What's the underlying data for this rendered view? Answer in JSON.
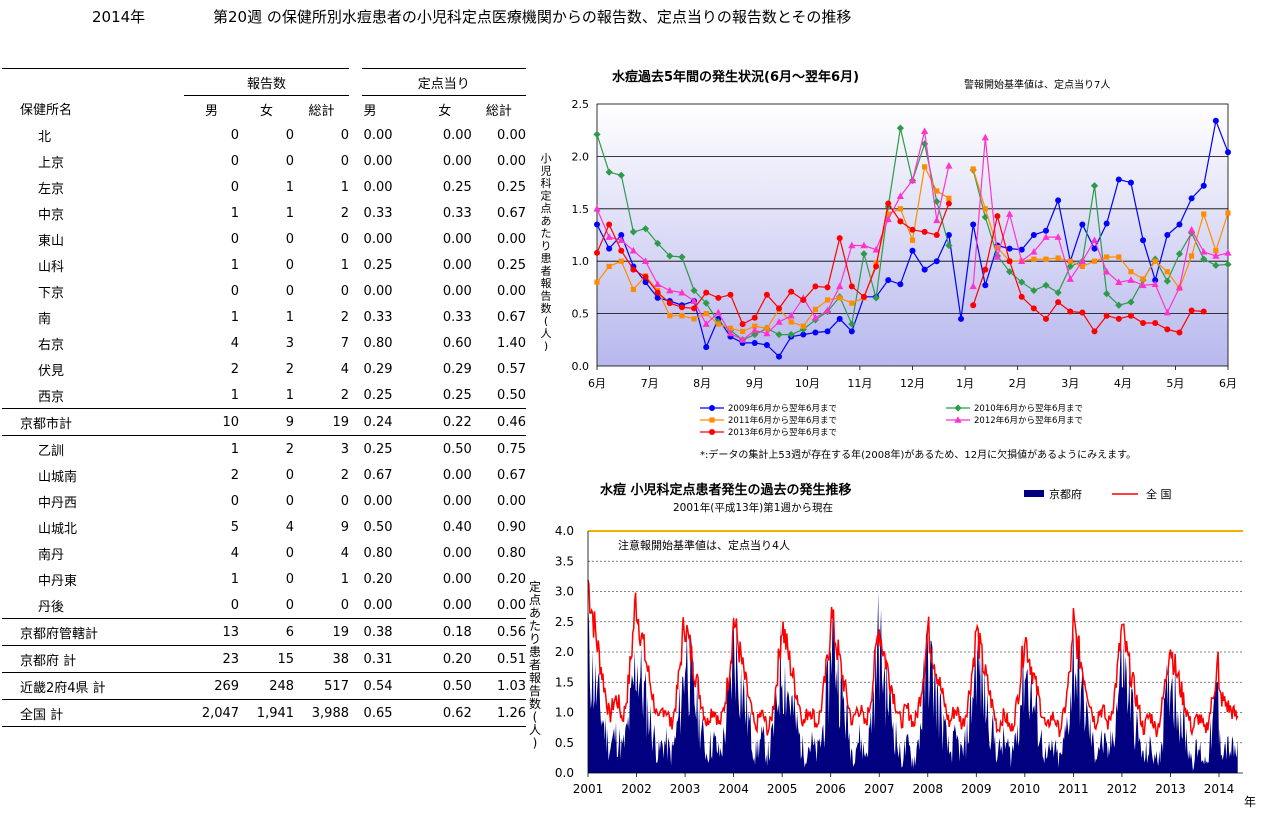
{
  "header": {
    "year": "2014年",
    "title": "第20週 の保健所別水痘患者の小児科定点医療機関からの報告数、定点当りの報告数とその推移"
  },
  "table": {
    "group_reports": "報告数",
    "group_perpoint": "定点当り",
    "col_name": "保健所名",
    "cols": [
      "男",
      "女",
      "総計",
      "男",
      "女",
      "総計"
    ],
    "rows": [
      {
        "name": "北",
        "v": [
          "0",
          "0",
          "0",
          "0.00",
          "0.00",
          "0.00"
        ]
      },
      {
        "name": "上京",
        "v": [
          "0",
          "0",
          "0",
          "0.00",
          "0.00",
          "0.00"
        ]
      },
      {
        "name": "左京",
        "v": [
          "0",
          "1",
          "1",
          "0.00",
          "0.25",
          "0.25"
        ]
      },
      {
        "name": "中京",
        "v": [
          "1",
          "1",
          "2",
          "0.33",
          "0.33",
          "0.67"
        ]
      },
      {
        "name": "東山",
        "v": [
          "0",
          "0",
          "0",
          "0.00",
          "0.00",
          "0.00"
        ]
      },
      {
        "name": "山科",
        "v": [
          "1",
          "0",
          "1",
          "0.25",
          "0.00",
          "0.25"
        ]
      },
      {
        "name": "下京",
        "v": [
          "0",
          "0",
          "0",
          "0.00",
          "0.00",
          "0.00"
        ]
      },
      {
        "name": "南",
        "v": [
          "1",
          "1",
          "2",
          "0.33",
          "0.33",
          "0.67"
        ]
      },
      {
        "name": "右京",
        "v": [
          "4",
          "3",
          "7",
          "0.80",
          "0.60",
          "1.40"
        ]
      },
      {
        "name": "伏見",
        "v": [
          "2",
          "2",
          "4",
          "0.29",
          "0.29",
          "0.57"
        ]
      },
      {
        "name": "西京",
        "v": [
          "1",
          "1",
          "2",
          "0.25",
          "0.25",
          "0.50"
        ]
      },
      {
        "name": "京都市計",
        "v": [
          "10",
          "9",
          "19",
          "0.24",
          "0.22",
          "0.46"
        ],
        "total": true
      },
      {
        "name": "乙訓",
        "v": [
          "1",
          "2",
          "3",
          "0.25",
          "0.50",
          "0.75"
        ]
      },
      {
        "name": "山城南",
        "v": [
          "2",
          "0",
          "2",
          "0.67",
          "0.00",
          "0.67"
        ]
      },
      {
        "name": "中丹西",
        "v": [
          "0",
          "0",
          "0",
          "0.00",
          "0.00",
          "0.00"
        ]
      },
      {
        "name": "山城北",
        "v": [
          "5",
          "4",
          "9",
          "0.50",
          "0.40",
          "0.90"
        ]
      },
      {
        "name": "南丹",
        "v": [
          "4",
          "0",
          "4",
          "0.80",
          "0.00",
          "0.80"
        ]
      },
      {
        "name": "中丹東",
        "v": [
          "1",
          "0",
          "1",
          "0.20",
          "0.00",
          "0.20"
        ]
      },
      {
        "name": "丹後",
        "v": [
          "0",
          "0",
          "0",
          "0.00",
          "0.00",
          "0.00"
        ]
      },
      {
        "name": "京都府管轄計",
        "v": [
          "13",
          "6",
          "19",
          "0.38",
          "0.18",
          "0.56"
        ],
        "total": true
      },
      {
        "name": "京都府 計",
        "v": [
          "23",
          "15",
          "38",
          "0.31",
          "0.20",
          "0.51"
        ],
        "total": true
      },
      {
        "name": "近畿2府4県 計",
        "v": [
          "269",
          "248",
          "517",
          "0.54",
          "0.50",
          "1.03"
        ],
        "total": true
      },
      {
        "name": "全国 計",
        "v": [
          "2,047",
          "1,941",
          "3,988",
          "0.65",
          "0.62",
          "1.26"
        ],
        "total": true
      }
    ]
  },
  "chart_data": [
    {
      "type": "line",
      "title": "水痘過去5年間の発生状況(6月～翌年6月)",
      "subtitle": "警報開始基準値は、定点当り7人",
      "ylabel": "小児科定点あたり患者報告数(人)",
      "ylim": [
        0,
        2.5
      ],
      "yticks": [
        "0.0",
        "0.5",
        "1.0",
        "1.5",
        "2.0",
        "2.5"
      ],
      "x_tick_labels": [
        "6月",
        "7月",
        "8月",
        "9月",
        "10月",
        "11月",
        "12月",
        "1月",
        "2月",
        "3月",
        "4月",
        "5月",
        "6月"
      ],
      "footnote": "*:データの集計上53週が存在する年(2008年)があるため、12月に欠損値があるようにみえます。",
      "series": [
        {
          "name": "2009年6月から翌年6月まで",
          "color": "#0000ff",
          "marker": "circle",
          "values": [
            1.35,
            1.12,
            1.25,
            0.95,
            0.8,
            0.65,
            0.62,
            0.58,
            0.62,
            0.18,
            0.45,
            0.28,
            0.22,
            0.22,
            0.2,
            0.09,
            0.28,
            0.3,
            0.32,
            0.33,
            0.45,
            0.33,
            0.66,
            0.66,
            0.82,
            0.78,
            1.1,
            0.92,
            1.0,
            1.25,
            0.45,
            1.35,
            0.77,
            1.15,
            1.12,
            1.11,
            1.25,
            1.29,
            1.58,
            1.0,
            1.35,
            1.12,
            1.36,
            1.78,
            1.75,
            1.2,
            0.82,
            1.25,
            1.35,
            1.6,
            1.72,
            2.34,
            2.04
          ]
        },
        {
          "name": "2010年6月から翌年6月まで",
          "color": "#2e9b4a",
          "marker": "diamond",
          "values": [
            2.21,
            1.85,
            1.82,
            1.28,
            1.31,
            1.17,
            1.05,
            1.04,
            0.72,
            0.6,
            0.42,
            0.34,
            0.25,
            0.3,
            0.36,
            0.3,
            0.3,
            0.35,
            0.44,
            0.52,
            0.66,
            0.4,
            1.07,
            0.65,
            1.52,
            2.27,
            1.77,
            2.12,
            1.57,
            1.15,
            null,
            1.87,
            1.42,
            1.05,
            0.9,
            0.8,
            0.72,
            0.77,
            0.7,
            0.95,
            1.0,
            1.72,
            0.69,
            0.58,
            0.61,
            0.82,
            1.02,
            0.81,
            1.07,
            1.27,
            1.02,
            0.96,
            0.97
          ]
        },
        {
          "name": "2011年6月から翌年6月まで",
          "color": "#ff8c00",
          "marker": "square",
          "values": [
            0.8,
            0.95,
            1.0,
            0.73,
            0.86,
            0.72,
            0.48,
            0.48,
            0.45,
            0.5,
            0.4,
            0.36,
            0.33,
            0.38,
            0.36,
            0.54,
            0.42,
            0.38,
            0.54,
            0.63,
            0.65,
            0.6,
            0.65,
            0.98,
            1.45,
            1.5,
            1.2,
            1.9,
            1.67,
            1.6,
            null,
            1.88,
            1.5,
            1.13,
            1.0,
            1.0,
            1.02,
            1.02,
            1.03,
            1.0,
            0.95,
            1.0,
            1.04,
            1.04,
            0.9,
            0.83,
            1.0,
            0.9,
            0.74,
            1.05,
            1.45,
            1.1,
            1.46
          ]
        },
        {
          "name": "2012年6月から翌年6月まで",
          "color": "#ff33cc",
          "marker": "triangle",
          "values": [
            1.5,
            1.23,
            1.2,
            1.1,
            1.0,
            0.78,
            0.72,
            0.7,
            0.62,
            0.4,
            0.51,
            0.31,
            0.25,
            0.34,
            0.31,
            0.42,
            0.48,
            0.65,
            0.46,
            0.53,
            0.76,
            1.15,
            1.15,
            1.11,
            1.4,
            1.62,
            1.77,
            2.24,
            1.39,
            1.91,
            null,
            0.76,
            2.18,
            1.04,
            1.45,
            1.0,
            1.09,
            1.23,
            1.23,
            0.83,
            1.0,
            1.2,
            0.9,
            0.8,
            0.82,
            0.77,
            0.78,
            0.51,
            0.75,
            1.3,
            1.09,
            1.05,
            1.08
          ]
        },
        {
          "name": "2013年6月から翌年6月まで",
          "color": "#ff0000",
          "marker": "circle",
          "values": [
            1.08,
            1.35,
            1.1,
            0.92,
            0.85,
            0.7,
            0.6,
            0.56,
            0.55,
            0.7,
            0.65,
            0.68,
            0.4,
            0.46,
            0.68,
            0.55,
            0.71,
            0.63,
            0.76,
            0.75,
            1.22,
            0.76,
            0.66,
            0.95,
            1.55,
            1.38,
            1.3,
            1.28,
            1.25,
            1.55,
            null,
            0.58,
            0.92,
            1.43,
            1.0,
            0.66,
            0.55,
            0.45,
            0.61,
            0.52,
            0.51,
            0.33,
            0.48,
            0.45,
            0.48,
            0.41,
            0.41,
            0.35,
            0.32,
            0.53,
            0.52,
            null,
            null
          ]
        }
      ]
    },
    {
      "type": "area",
      "title": "水痘 小児科定点患者発生の過去の発生推移",
      "subtitle": "2001年(平成13年)第1週から現在",
      "ylabel": "定点あたり患者報告数(人)",
      "xlabel": "年",
      "ylim": [
        0,
        4.0
      ],
      "yticks": [
        "0.0",
        "0.5",
        "1.0",
        "1.5",
        "2.0",
        "2.5",
        "3.0",
        "3.5",
        "4.0"
      ],
      "x_tick_labels": [
        "2001",
        "2002",
        "2003",
        "2004",
        "2005",
        "2006",
        "2007",
        "2008",
        "2009",
        "2010",
        "2011",
        "2012",
        "2013",
        "2014"
      ],
      "threshold": 4.0,
      "annotation": "注意報開始基準値は、定点当り4人",
      "series": [
        {
          "name": "京都府",
          "color": "#000080",
          "fill": true,
          "yearly_peaks": [
            2.0,
            1.9,
            2.1,
            2.2,
            1.8,
            2.5,
            2.1,
            2.0,
            1.9,
            1.8,
            2.0,
            1.9,
            1.7,
            0.5
          ],
          "yearly_troughs": [
            0.4,
            0.3,
            0.3,
            0.3,
            0.3,
            0.3,
            0.2,
            0.3,
            0.3,
            0.2,
            0.3,
            0.2,
            0.2,
            0.3
          ]
        },
        {
          "name": "全 国",
          "color": "#ff0000",
          "fill": false,
          "yearly_peaks": [
            3.2,
            2.8,
            2.5,
            2.6,
            2.5,
            2.7,
            2.4,
            2.4,
            2.4,
            2.3,
            2.5,
            2.4,
            2.1,
            1.3
          ],
          "yearly_troughs": [
            0.9,
            0.8,
            0.8,
            0.7,
            0.8,
            0.8,
            0.8,
            0.8,
            0.7,
            0.7,
            0.8,
            0.7,
            0.7,
            0.85
          ]
        }
      ]
    }
  ]
}
